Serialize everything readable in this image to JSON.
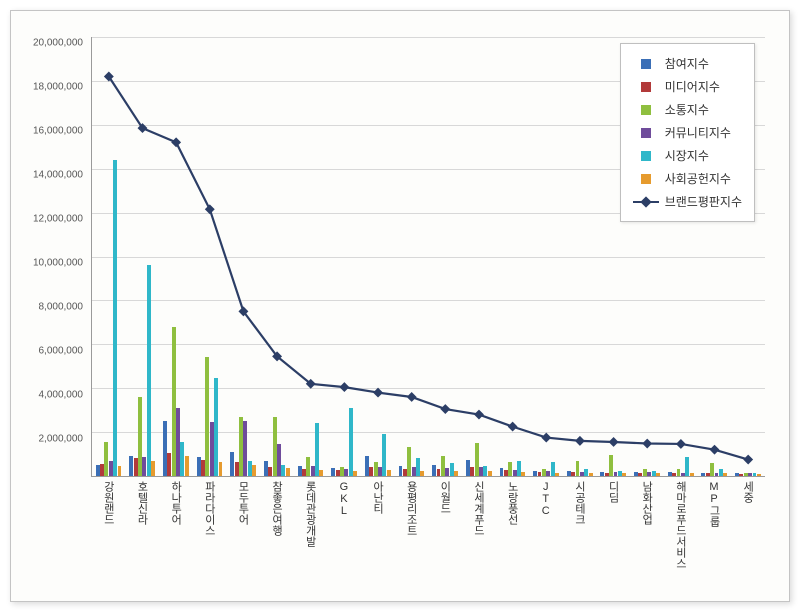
{
  "chart": {
    "type": "bar+line",
    "background_color": "#fdfdfb",
    "border_color": "#c4c4c4",
    "grid_color": "#d8d8d8",
    "axis_color": "#9a9a9a",
    "tick_font_size": 10,
    "ylim": [
      0,
      20000000
    ],
    "ytick_step": 2000000,
    "yticks": [
      {
        "v": 0,
        "label": ""
      },
      {
        "v": 2000000,
        "label": "2,000,000"
      },
      {
        "v": 4000000,
        "label": "4,000,000"
      },
      {
        "v": 6000000,
        "label": "6,000,000"
      },
      {
        "v": 8000000,
        "label": "8,000,000"
      },
      {
        "v": 10000000,
        "label": "10,000,000"
      },
      {
        "v": 12000000,
        "label": "12,000,000"
      },
      {
        "v": 14000000,
        "label": "14,000,000"
      },
      {
        "v": 16000000,
        "label": "16,000,000"
      },
      {
        "v": 18000000,
        "label": "18,000,000"
      },
      {
        "v": 20000000,
        "label": "20,000,000"
      }
    ],
    "categories": [
      "강원랜드",
      "호텔신라",
      "하나투어",
      "파라다이스",
      "모두투어",
      "참좋은여행",
      "롯데관광개발",
      "GKL",
      "아난티",
      "용평리조트",
      "이월드",
      "신세계푸드",
      "노랑풍선",
      "JTC",
      "시공테크",
      "디딤",
      "남화산업",
      "해마로푸드서비스",
      "MP그룹",
      "세중"
    ],
    "bar_series": [
      {
        "name": "참여지수",
        "color": "#3b6fb6",
        "values": [
          500000,
          900000,
          2500000,
          850000,
          1100000,
          700000,
          450000,
          350000,
          900000,
          450000,
          500000,
          750000,
          350000,
          250000,
          220000,
          200000,
          180000,
          180000,
          160000,
          130000
        ]
      },
      {
        "name": "미디어지수",
        "color": "#b23a3a",
        "values": [
          550000,
          820000,
          1050000,
          720000,
          650000,
          420000,
          320000,
          280000,
          400000,
          320000,
          300000,
          420000,
          260000,
          200000,
          180000,
          160000,
          150000,
          150000,
          140000,
          110000
        ]
      },
      {
        "name": "소통지수",
        "color": "#8fbf3f",
        "values": [
          1550000,
          3600000,
          6800000,
          5400000,
          2700000,
          2700000,
          850000,
          400000,
          650000,
          1300000,
          930000,
          1500000,
          650000,
          300000,
          700000,
          950000,
          340000,
          300000,
          600000,
          150000
        ]
      },
      {
        "name": "커뮤니티지수",
        "color": "#6f4c9b",
        "values": [
          700000,
          850000,
          3100000,
          2450000,
          2500000,
          1450000,
          450000,
          320000,
          430000,
          400000,
          350000,
          400000,
          280000,
          220000,
          200000,
          180000,
          170000,
          160000,
          150000,
          120000
        ]
      },
      {
        "name": "시장지수",
        "color": "#2fb7c9",
        "values": [
          14400000,
          9600000,
          1550000,
          4450000,
          700000,
          500000,
          2400000,
          3100000,
          1900000,
          800000,
          580000,
          450000,
          700000,
          650000,
          320000,
          250000,
          230000,
          850000,
          300000,
          150000
        ]
      },
      {
        "name": "사회공헌지수",
        "color": "#e69b2e",
        "values": [
          450000,
          700000,
          900000,
          650000,
          500000,
          350000,
          280000,
          240000,
          260000,
          240000,
          220000,
          230000,
          200000,
          160000,
          150000,
          140000,
          130000,
          130000,
          120000,
          100000
        ]
      }
    ],
    "line_series": {
      "name": "브랜드평판지수",
      "color": "#2c3e66",
      "marker": "diamond",
      "marker_size": 7,
      "line_width": 2.2,
      "values": [
        18200000,
        15850000,
        15200000,
        12150000,
        7500000,
        5450000,
        4200000,
        4050000,
        3800000,
        3600000,
        3050000,
        2800000,
        2250000,
        1750000,
        1600000,
        1550000,
        1480000,
        1460000,
        1200000,
        750000
      ]
    },
    "legend": {
      "position": "top-right",
      "border_color": "#bfbfbf",
      "bg_color": "#ffffff",
      "items": [
        {
          "label": "참여지수",
          "type": "bar",
          "color": "#3b6fb6"
        },
        {
          "label": "미디어지수",
          "type": "bar",
          "color": "#b23a3a"
        },
        {
          "label": "소통지수",
          "type": "bar",
          "color": "#8fbf3f"
        },
        {
          "label": "커뮤니티지수",
          "type": "bar",
          "color": "#6f4c9b"
        },
        {
          "label": "시장지수",
          "type": "bar",
          "color": "#2fb7c9"
        },
        {
          "label": "사회공헌지수",
          "type": "bar",
          "color": "#e69b2e"
        },
        {
          "label": "브랜드평판지수",
          "type": "line",
          "color": "#2c3e66"
        }
      ]
    }
  }
}
